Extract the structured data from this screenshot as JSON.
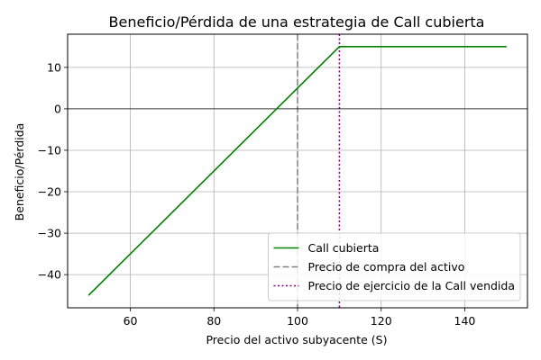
{
  "chart_data": {
    "type": "line",
    "title": "Beneficio/Pérdida de una estrategia de Call cubierta",
    "xlabel": "Precio del activo subyacente (S)",
    "ylabel": "Beneficio/Pérdida",
    "xlim": [
      45,
      155
    ],
    "ylim": [
      -48,
      18
    ],
    "xticks": [
      60,
      80,
      100,
      120,
      140
    ],
    "yticks": [
      -40,
      -30,
      -20,
      -10,
      0,
      10
    ],
    "grid": true,
    "legend_position": "lower-right",
    "series": [
      {
        "name": "Call cubierta",
        "color": "#008000",
        "style": "solid",
        "x": [
          50,
          110,
          150
        ],
        "y": [
          -45,
          15,
          15
        ]
      }
    ],
    "reference_lines": [
      {
        "name": "Precio de compra del activo",
        "axis": "x",
        "value": 100,
        "color": "#808080",
        "style": "dashed"
      },
      {
        "name": "Precio de ejercicio de la Call vendida",
        "axis": "x",
        "value": 110,
        "color": "#800080",
        "style": "dotted"
      },
      {
        "name": "",
        "axis": "y",
        "value": 0,
        "color": "#000000",
        "style": "solid"
      }
    ]
  }
}
